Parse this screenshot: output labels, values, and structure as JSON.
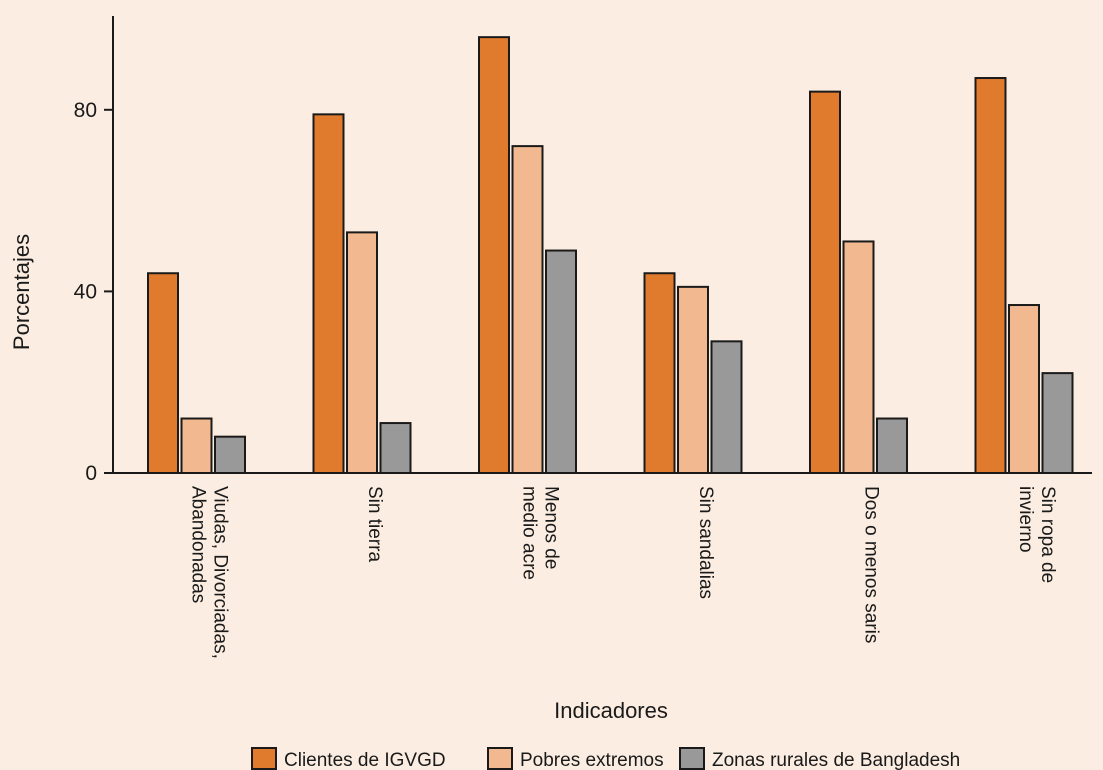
{
  "chart_data": {
    "type": "bar",
    "title": "",
    "xlabel": "Indicadores",
    "ylabel": "Porcentajes",
    "ylim": [
      0,
      100
    ],
    "yticks": [
      0,
      40,
      80
    ],
    "grid": false,
    "legend_position": "bottom",
    "categories": [
      [
        "Viudas, Divorciadas,",
        "Abandonadas"
      ],
      [
        "Sin tierra"
      ],
      [
        "Menos de",
        "medio acre"
      ],
      [
        "Sin sandalias"
      ],
      [
        "Dos o menos saris"
      ],
      [
        "Sin ropa de",
        "invierno"
      ]
    ],
    "series": [
      {
        "name": "Clientes de IGVGD",
        "color": "#e07b2e",
        "values": [
          44,
          79,
          96,
          44,
          84,
          87
        ]
      },
      {
        "name": "Pobres extremos",
        "color": "#f2b890",
        "values": [
          12,
          53,
          72,
          41,
          51,
          37
        ]
      },
      {
        "name": "Zonas rurales de Bangladesh",
        "color": "#999999",
        "values": [
          8,
          11,
          49,
          29,
          12,
          22
        ]
      }
    ]
  }
}
